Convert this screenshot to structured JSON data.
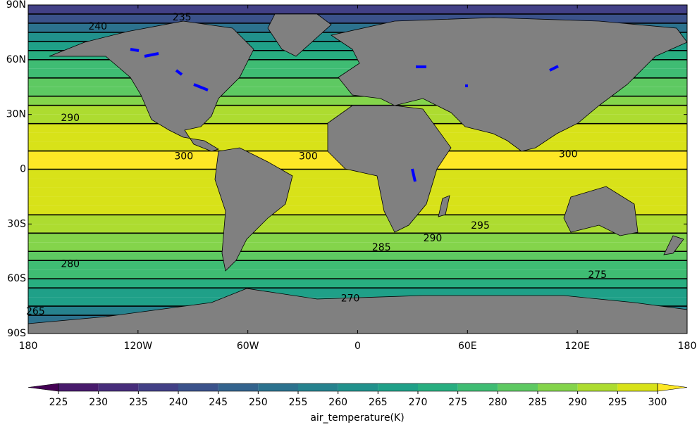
{
  "chart_data": {
    "type": "filled_contour",
    "colorbar_label": "air_temperature(K)",
    "xlim": [
      -180,
      180
    ],
    "ylim": [
      -90,
      90
    ],
    "xticks": [
      {
        "value": -180,
        "label": "180"
      },
      {
        "value": -120,
        "label": "120W"
      },
      {
        "value": -60,
        "label": "60W"
      },
      0,
      {
        "value": 60,
        "label": "60E"
      },
      {
        "value": 120,
        "label": "120E"
      },
      {
        "value": 180,
        "label": "180"
      }
    ],
    "yticks": [
      {
        "value": -90,
        "label": "90S"
      },
      {
        "value": -60,
        "label": "60S"
      },
      {
        "value": -30,
        "label": "30S"
      },
      0,
      {
        "value": 30,
        "label": "30N"
      },
      {
        "value": 60,
        "label": "60N"
      },
      {
        "value": 90,
        "label": "90N"
      }
    ],
    "levels": [
      225,
      230,
      235,
      240,
      245,
      250,
      255,
      260,
      265,
      270,
      275,
      280,
      285,
      290,
      295,
      300
    ],
    "colors": [
      "#440154",
      "#481a6c",
      "#472d7b",
      "#424086",
      "#3b528b",
      "#33638d",
      "#2c728e",
      "#26828e",
      "#21918c",
      "#1fa088",
      "#28ae80",
      "#3fbc73",
      "#5ec962",
      "#84d44b",
      "#addc30",
      "#d8e219",
      "#fde725"
    ],
    "lat": [
      -87.5,
      -82.5,
      -77.5,
      -72.5,
      -67.5,
      -62.5,
      -57.5,
      -52.5,
      -47.5,
      -42.5,
      -37.5,
      -32.5,
      -27.5,
      -22.5,
      -17.5,
      -12.5,
      -7.5,
      -2.5,
      2.5,
      7.5,
      12.5,
      17.5,
      22.5,
      27.5,
      32.5,
      37.5,
      42.5,
      47.5,
      52.5,
      57.5,
      62.5,
      67.5,
      72.5,
      77.5,
      82.5,
      87.5
    ],
    "values": [
      245,
      250,
      258,
      265,
      269,
      272,
      275,
      278,
      281,
      285,
      288,
      291,
      293,
      295,
      296.5,
      297.5,
      298.5,
      299.5,
      300.5,
      300,
      299,
      297,
      295,
      292,
      290,
      287,
      284,
      281,
      278,
      276,
      273,
      268,
      260,
      250,
      242,
      238
    ],
    "contour_labels": [
      {
        "value": 240,
        "lon": -142,
        "lat": 78
      },
      {
        "value": 235,
        "lon": -96,
        "lat": 83
      },
      {
        "value": 290,
        "lon": -157,
        "lat": 28
      },
      {
        "value": 300,
        "lon": -95,
        "lat": 7
      },
      {
        "value": 300,
        "lon": -27,
        "lat": 7
      },
      {
        "value": 300,
        "lon": 115,
        "lat": 8
      },
      {
        "value": 280,
        "lon": -157,
        "lat": -52
      },
      {
        "value": 285,
        "lon": 13,
        "lat": -43
      },
      {
        "value": 290,
        "lon": 41,
        "lat": -38
      },
      {
        "value": 295,
        "lon": 67,
        "lat": -31
      },
      {
        "value": 275,
        "lon": 131,
        "lat": -58
      },
      {
        "value": 270,
        "lon": -4,
        "lat": -71
      },
      {
        "value": 265,
        "lon": -176,
        "lat": -78
      }
    ]
  }
}
